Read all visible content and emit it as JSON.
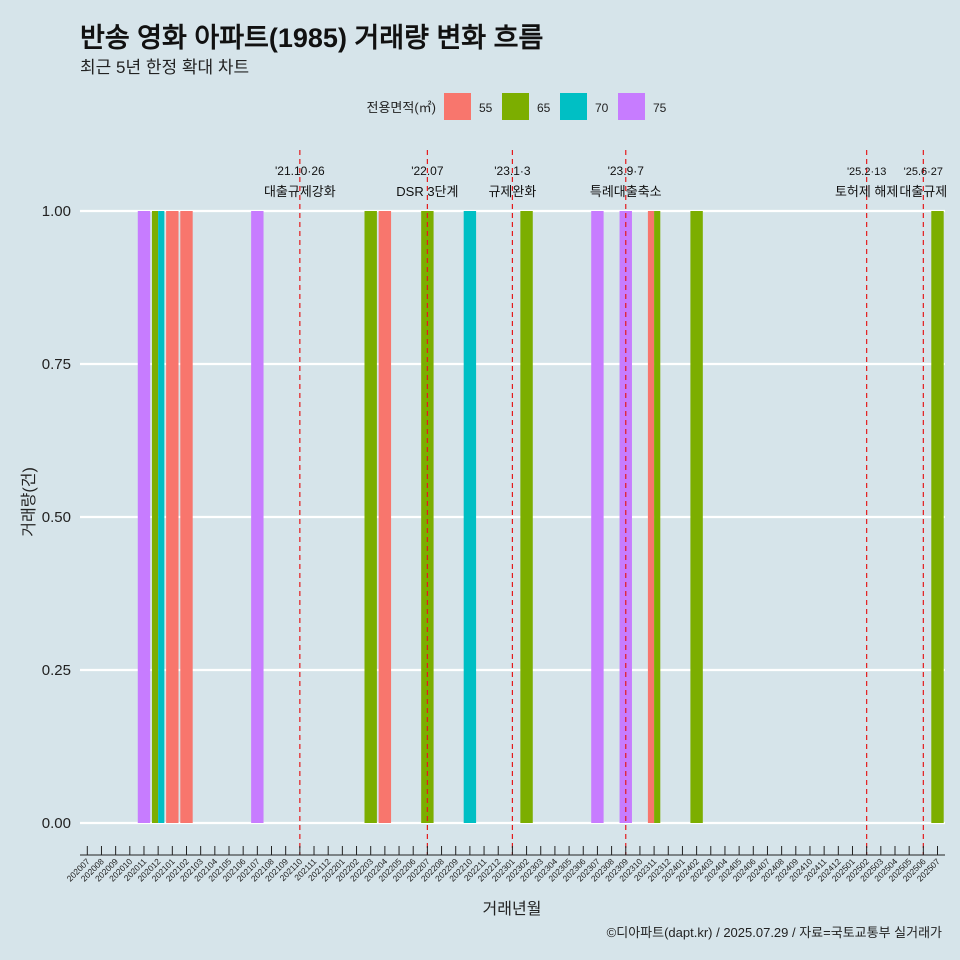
{
  "title": "반송 영화 아파트(1985) 거래량 변화 흐름",
  "subtitle": "최근 5년 한정 확대 차트",
  "caption": "©디아파트(dapt.kr) / 2025.07.29 / 자료=국토교통부 실거래가",
  "colors": {
    "background": "#d6e4ea",
    "grid": "#ffffff",
    "vline": "#e41a1c",
    "text": "#222222"
  },
  "chart_data": {
    "type": "bar",
    "xlabel": "거래년월",
    "ylabel": "거래량(건)",
    "ylim": [
      0,
      1
    ],
    "yticks": [
      0,
      0.25,
      0.5,
      0.75,
      1
    ],
    "ytick_labels": [
      "0.00",
      "0.25",
      "0.50",
      "0.75",
      "1.00"
    ],
    "legend_title": "전용면적(㎡)",
    "legend_position": "top",
    "categories": [
      "202007",
      "202008",
      "202009",
      "202010",
      "202011",
      "202012",
      "202101",
      "202102",
      "202103",
      "202104",
      "202105",
      "202106",
      "202107",
      "202108",
      "202109",
      "202110",
      "202111",
      "202112",
      "202201",
      "202202",
      "202203",
      "202204",
      "202205",
      "202206",
      "202207",
      "202208",
      "202209",
      "202210",
      "202211",
      "202212",
      "202301",
      "202302",
      "202303",
      "202304",
      "202305",
      "202306",
      "202307",
      "202308",
      "202309",
      "202310",
      "202311",
      "202312",
      "202401",
      "202402",
      "202403",
      "202404",
      "202405",
      "202406",
      "202407",
      "202408",
      "202409",
      "202410",
      "202411",
      "202412",
      "202501",
      "202502",
      "202503",
      "202504",
      "202505",
      "202506",
      "202507"
    ],
    "series": [
      {
        "name": "55",
        "color": "#f8766d"
      },
      {
        "name": "65",
        "color": "#7cae00"
      },
      {
        "name": "70",
        "color": "#00bfc4"
      },
      {
        "name": "75",
        "color": "#c77cff"
      }
    ],
    "bars": [
      {
        "x": "202011",
        "values": [
          0,
          0,
          0,
          1
        ]
      },
      {
        "x": "202012",
        "values": [
          0,
          1,
          1,
          0
        ]
      },
      {
        "x": "202101",
        "values": [
          1,
          0,
          0,
          0
        ]
      },
      {
        "x": "202102",
        "values": [
          1,
          0,
          0,
          0
        ]
      },
      {
        "x": "202107",
        "values": [
          0,
          0,
          0,
          1
        ]
      },
      {
        "x": "202203",
        "values": [
          0,
          1,
          0,
          0
        ]
      },
      {
        "x": "202204",
        "values": [
          1,
          0,
          0,
          0
        ]
      },
      {
        "x": "202207",
        "values": [
          0,
          1,
          0,
          0
        ]
      },
      {
        "x": "202210",
        "values": [
          0,
          0,
          1,
          0
        ]
      },
      {
        "x": "202302",
        "values": [
          0,
          1,
          0,
          0
        ]
      },
      {
        "x": "202307",
        "values": [
          0,
          0,
          0,
          1
        ]
      },
      {
        "x": "202309",
        "values": [
          0,
          0,
          0,
          1
        ]
      },
      {
        "x": "202311",
        "values": [
          1,
          1,
          0,
          0
        ]
      },
      {
        "x": "202402",
        "values": [
          0,
          1,
          0,
          0
        ]
      },
      {
        "x": "202507",
        "values": [
          0,
          1,
          0,
          0
        ]
      }
    ],
    "events": [
      {
        "x": "202110",
        "date": "'21.10·26",
        "label": "대출규제강화"
      },
      {
        "x": "202207",
        "date": "'22.07",
        "label": "DSR 3단계"
      },
      {
        "x": "202301",
        "date": "'23.1·3",
        "label": "규제완화"
      },
      {
        "x": "202309",
        "date": "'23.9·7",
        "label": "특례대출축소"
      },
      {
        "x": "202502",
        "date": "'25.2·13",
        "label": "토허제 해제"
      },
      {
        "x": "202506",
        "date": "'25.6·27",
        "label": "대출규제"
      }
    ]
  }
}
